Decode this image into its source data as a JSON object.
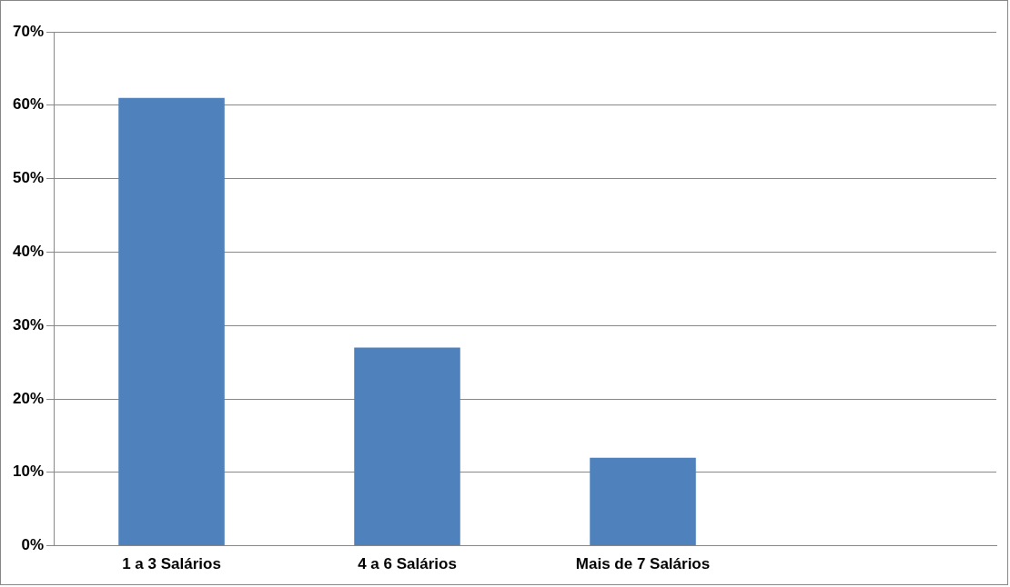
{
  "chart_data": {
    "type": "bar",
    "categories": [
      "1 a 3 Salários",
      "4 a 6 Salários",
      "Mais de 7 Salários",
      null
    ],
    "values": [
      61,
      27,
      12,
      null
    ],
    "color": "#4f81bd",
    "ylim": [
      0,
      70
    ],
    "yticks": [
      {
        "value": 0,
        "label": "0%"
      },
      {
        "value": 10,
        "label": "10%"
      },
      {
        "value": 20,
        "label": "20%"
      },
      {
        "value": 30,
        "label": "30%"
      },
      {
        "value": 40,
        "label": "40%"
      },
      {
        "value": 50,
        "label": "50%"
      },
      {
        "value": 60,
        "label": "60%"
      },
      {
        "value": 70,
        "label": "70%"
      }
    ],
    "grid": "y",
    "legend": false
  }
}
